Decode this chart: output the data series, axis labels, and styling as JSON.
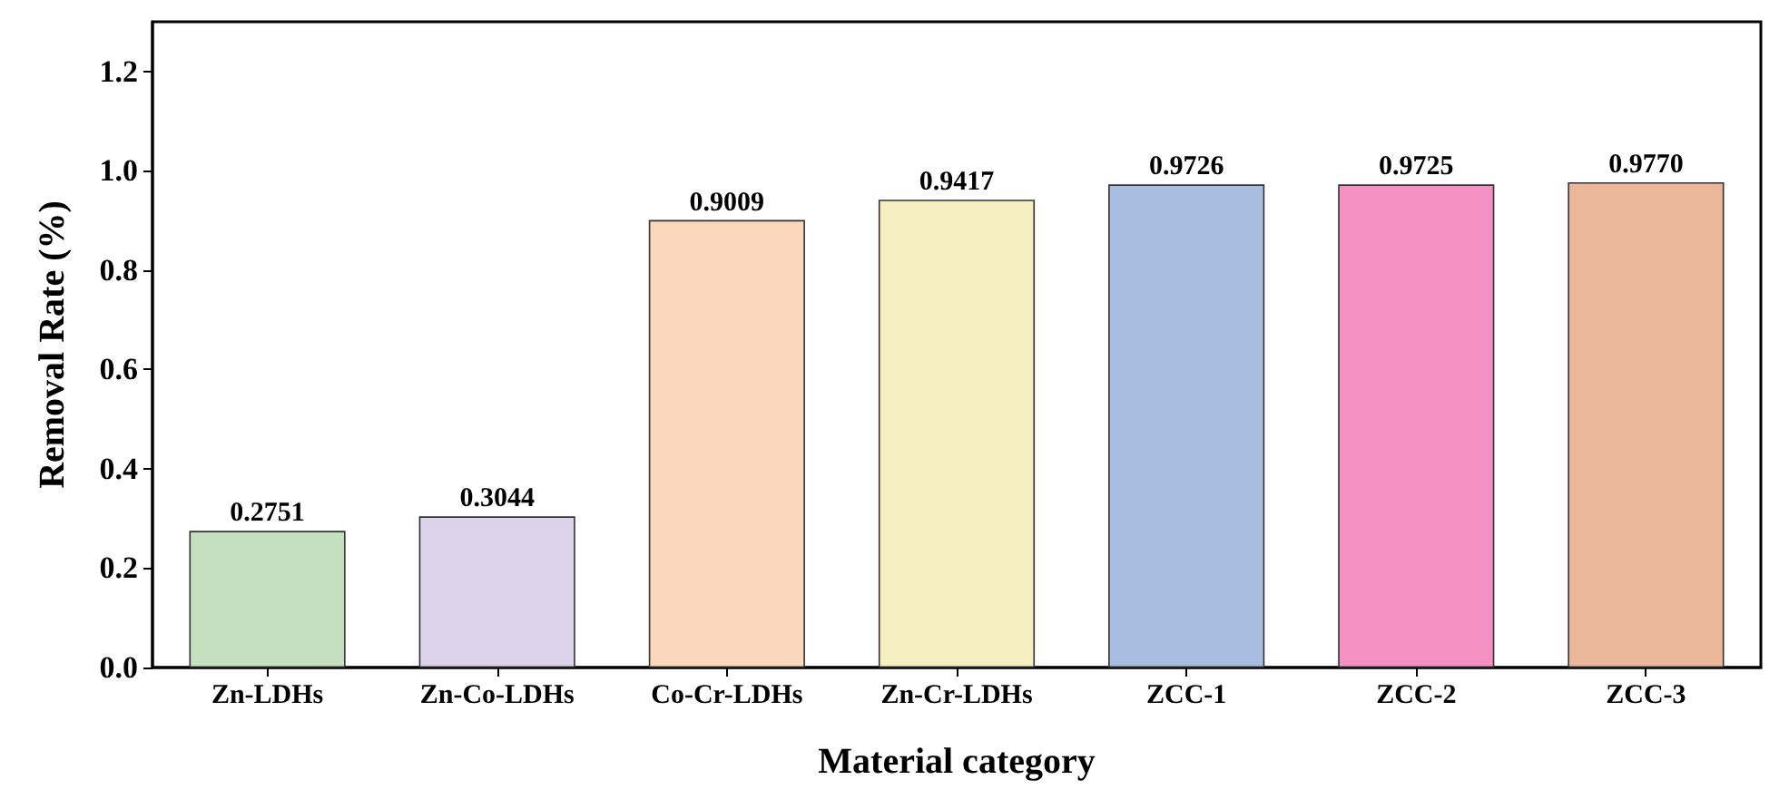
{
  "chart_data": {
    "type": "bar",
    "xlabel": "Material category",
    "ylabel": "Removal Rate (%)",
    "categories": [
      "Zn-LDHs",
      "Zn-Co-LDHs",
      "Co-Cr-LDHs",
      "Zn-Cr-LDHs",
      "ZCC-1",
      "ZCC-2",
      "ZCC-3"
    ],
    "values": [
      0.2751,
      0.3044,
      0.9009,
      0.9417,
      0.9726,
      0.9725,
      0.977
    ],
    "colors": [
      "#c5e0bf",
      "#ddd3ea",
      "#fbd8bb",
      "#f6f0c0",
      "#a8bde0",
      "#f590c2",
      "#eab79a"
    ],
    "value_labels": [
      "0.2751",
      "0.3044",
      "0.9009",
      "0.9417",
      "0.9726",
      "0.9725",
      "0.9770"
    ],
    "ylim": [
      0,
      1.3
    ],
    "yticks": [
      {
        "value": 0,
        "label": "0.0"
      },
      0.2,
      0.4,
      0.6,
      0.8,
      {
        "value": 1,
        "label": "1.0"
      },
      1.2
    ],
    "grid": false
  }
}
